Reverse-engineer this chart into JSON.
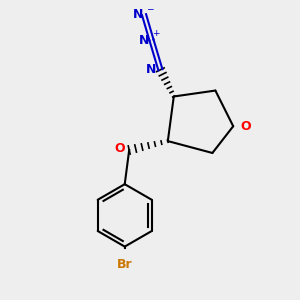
{
  "background_color": "#eeeeee",
  "ring_color": "#000000",
  "oxygen_color": "#ff0000",
  "nitrogen_color": "#0000cc",
  "bromine_color": "#cc7700",
  "figsize": [
    3.0,
    3.0
  ],
  "dpi": 100,
  "xlim": [
    0,
    10
  ],
  "ylim": [
    0,
    10
  ],
  "lw": 1.5
}
